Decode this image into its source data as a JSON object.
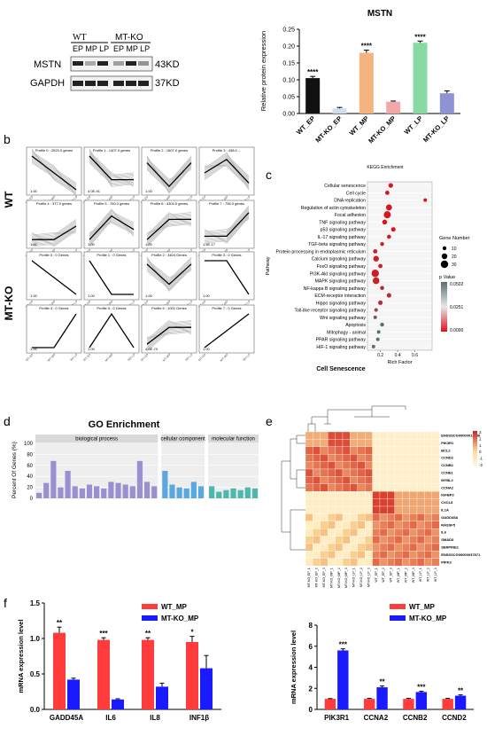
{
  "panel_letters": {
    "b": "b",
    "c": "c",
    "d": "d",
    "e": "e",
    "f": "f"
  },
  "western": {
    "groups": [
      "WT",
      "MT-KO"
    ],
    "lanes": [
      "EP MP LP",
      "EP MP LP"
    ],
    "proteins": [
      "MSTN",
      "GAPDH"
    ],
    "sizes": [
      "43KD",
      "37KD"
    ]
  },
  "chart_data": [
    {
      "id": "mstn_bar",
      "type": "bar",
      "title": "MSTN",
      "ylabel": "Relative protein expression",
      "ylim": [
        0,
        0.25
      ],
      "yticks": [
        "0.00",
        "0.05",
        "0.10",
        "0.15",
        "0.20",
        "0.25"
      ],
      "categories": [
        "WT_EP",
        "MT-KO_EP",
        "WT_MP",
        "MT-KO_MP",
        "WT_LP",
        "MT-KO_LP"
      ],
      "values": [
        0.105,
        0.015,
        0.18,
        0.035,
        0.21,
        0.06
      ],
      "errors": [
        0.005,
        0.003,
        0.008,
        0.002,
        0.005,
        0.007
      ],
      "significance": [
        "****",
        "",
        "****",
        "",
        "****",
        ""
      ],
      "colors": [
        "#111111",
        "#d4dde6",
        "#f5b380",
        "#f3a8a8",
        "#86dba2",
        "#8e93d6"
      ]
    },
    {
      "id": "stem_profiles",
      "type": "line",
      "rows": [
        {
          "label": "WT",
          "profiles": [
            {
              "title": "Profile 0 : 2523.0 genes",
              "path": [
                1,
                0.5,
                0
              ],
              "p": "1.00"
            },
            {
              "title": "Profile 1 : 1407.0 genes",
              "path": [
                1,
                0.3,
                0.3
              ],
              "p": "4.0E-91"
            },
            {
              "title": "Profile 2 : 1607.0 genes",
              "path": [
                0.8,
                0.1,
                0.8
              ],
              "p": "1.00"
            },
            {
              "title": "Profile 3 : 438.0 ...",
              "path": [
                0.5,
                0.9,
                0.2
              ],
              "p": ""
            },
            {
              "title": "Profile 4 : 377.0 genes",
              "path": [
                0.1,
                0.1,
                0.5
              ],
              "p": "1.00"
            },
            {
              "title": "Profile 5 : 760.0 genes",
              "path": [
                0.1,
                0.8,
                0.4
              ],
              "p": "1.00"
            },
            {
              "title": "Profile 6 : 4304.0 genes",
              "path": [
                0.1,
                0.7,
                0.7
              ],
              "p": "1.00"
            },
            {
              "title": "Profile 7 : 796.0 genes",
              "path": [
                0.2,
                0.2,
                0.9
              ],
              "p": "1.5E-17"
            }
          ]
        },
        {
          "label": "MT-KO",
          "profiles": [
            {
              "title": "Profile 0 : 0 Genes",
              "path": [
                1,
                0.5,
                0
              ],
              "p": "1.00"
            },
            {
              "title": "Profile 1 : 0 Genes",
              "path": [
                1,
                0,
                0
              ],
              "p": "1.00"
            },
            {
              "title": "Profile 2 : 3404 Genes",
              "path": [
                0.9,
                0.3,
                0.9
              ],
              "p": "1.00"
            },
            {
              "title": "Profile 3 : 0 Genes",
              "path": [
                1,
                1,
                0
              ],
              "p": "1.00"
            },
            {
              "title": "Profile 4 : 0 Genes",
              "path": [
                0,
                0,
                1
              ],
              "p": "1.00"
            },
            {
              "title": "Profile 5 : 0 Genes",
              "path": [
                0,
                1,
                0
              ],
              "p": "1.00"
            },
            {
              "title": "Profile 6 : 1001 Genes",
              "path": [
                0.1,
                0.6,
                0.6
              ],
              "p": "4.0E-70"
            },
            {
              "title": "Profile 7 : 0 Genes",
              "path": [
                0,
                0.5,
                1
              ],
              "p": "1.00"
            }
          ]
        }
      ],
      "xticks_wt": [
        "WT-EP",
        "WT-MP",
        "WT-LP"
      ],
      "xticks_ko": [
        "MT-EP",
        "MT-MP",
        "MT-LP"
      ]
    },
    {
      "id": "kegg_dot",
      "type": "scatter",
      "title": "KEGG Enrichment",
      "xlabel": "Rich Factor",
      "ylabel": "Pathway",
      "footer": "Cell Senescence",
      "xticks": [
        "0.2",
        "0.4",
        "0.6"
      ],
      "xlim": [
        0.05,
        0.8
      ],
      "pathways": [
        "Cellular senescence",
        "Cell cycle",
        "DNA replication",
        "Regulation of actin cytoskeleton",
        "Focal adhesion",
        "TNF signaling pathway",
        "p53 signaling pathway",
        "IL-17 signaling pathway",
        "TGF-beta signaling pathway",
        "Protein processing in endoplasmic reticulum",
        "Calcium signaling pathway",
        "FoxO signaling pathway",
        "PI3K-Akt signaling pathway",
        "MAPK signaling pathway",
        "NF-kappa B signaling pathway",
        "ECM-receptor interaction",
        "Hippo signaling pathway",
        "Toll-like receptor signaling pathway",
        "Wnt signaling pathway",
        "Apoptosis",
        "Mitophagy - animal",
        "PPAR signaling pathway",
        "HIF-1 signaling pathway"
      ],
      "rich": [
        0.32,
        0.28,
        0.72,
        0.3,
        0.28,
        0.25,
        0.35,
        0.3,
        0.22,
        0.14,
        0.15,
        0.2,
        0.14,
        0.15,
        0.22,
        0.3,
        0.2,
        0.15,
        0.14,
        0.22,
        0.18,
        0.17,
        0.12
      ],
      "gene_number": [
        14,
        12,
        8,
        22,
        28,
        16,
        14,
        11,
        10,
        12,
        20,
        12,
        30,
        26,
        11,
        14,
        14,
        9,
        8,
        10,
        8,
        8,
        8
      ],
      "pvalue": [
        0.0005,
        0.001,
        0.0005,
        0.001,
        0.001,
        0.001,
        0.002,
        0.003,
        0.004,
        0.008,
        0.006,
        0.006,
        0.007,
        0.008,
        0.01,
        0.012,
        0.015,
        0.03,
        0.04,
        0.05,
        0.07,
        0.08,
        0.09
      ],
      "size_legend_title": "Gene Number",
      "size_legend": [
        "10",
        "20",
        "30"
      ],
      "color_legend_title": "p Value",
      "color_legend": [
        "0.0502",
        "0.0251",
        "0.0000"
      ]
    },
    {
      "id": "go_bar",
      "type": "bar",
      "title": "GO Enrichment",
      "ylabel": "Percent Of Genes (%)",
      "ylim": [
        0,
        100
      ],
      "yticks": [
        "0",
        "20",
        "40",
        "60",
        "80",
        "100"
      ],
      "facets": [
        {
          "name": "biological process",
          "color": "#9a8fcf",
          "values": [
            10,
            28,
            68,
            20,
            50,
            22,
            18,
            25,
            22,
            18,
            30,
            28,
            25,
            22,
            68,
            30,
            22
          ]
        },
        {
          "name": "cellular component",
          "color": "#5aa8e0",
          "values": [
            50,
            25,
            20,
            18,
            30,
            22
          ]
        },
        {
          "name": "molecular function",
          "color": "#4fb8ad",
          "values": [
            22,
            12,
            15,
            18,
            15,
            20,
            18
          ]
        }
      ]
    },
    {
      "id": "heatmap",
      "type": "heatmap",
      "rows": [
        "ENSSSCG00000012288",
        "PIK3R1",
        "BCL2",
        "CCND2",
        "CCNB1",
        "CCNE1",
        "MYBL2",
        "CCNA2",
        "IGFBP3",
        "CXCL8",
        "IL1A",
        "GADD45A",
        "RASSF5",
        "IL6",
        "SMAD3",
        "SERPINE1",
        "ENSSSCG00000037871",
        "PIPK3"
      ],
      "cols": [
        "MT-KO_EP_1",
        "MT-KO_EP_2",
        "MT-KO_EP_3",
        "MT-KO_MP_1",
        "MT-KO_MP_2",
        "MT-KO_MP_3",
        "MT-KO_LP_1",
        "MT-KO_LP_2",
        "MT-KO_LP_3",
        "WT_EP_1",
        "WT_EP_2",
        "WT_EP_3",
        "WT_MP_1",
        "WT_MP_2",
        "WT_MP_3",
        "WT_LP_1",
        "WT_LP_2",
        "WT_LP_3"
      ],
      "scale": [
        "3",
        "2",
        "1",
        "0",
        "-1",
        "-2"
      ]
    },
    {
      "id": "mrna_left",
      "type": "bar",
      "ylabel": "mRNA expression level",
      "ylim": [
        0,
        1.5
      ],
      "yticks": [
        "0.0",
        "0.5",
        "1.0",
        "1.5"
      ],
      "categories": [
        "GADD45A",
        "IL6",
        "IL8",
        "INF1β"
      ],
      "series": [
        {
          "name": "WT_MP",
          "color": "#ff3b3b",
          "values": [
            1.08,
            0.98,
            0.98,
            0.95
          ],
          "errors": [
            0.08,
            0.03,
            0.03,
            0.08
          ]
        },
        {
          "name": "MT-KO_MP",
          "color": "#1a1aff",
          "values": [
            0.42,
            0.14,
            0.32,
            0.58
          ],
          "errors": [
            0.02,
            0.01,
            0.05,
            0.18
          ]
        }
      ],
      "significance": [
        "**",
        "***",
        "**",
        "*"
      ]
    },
    {
      "id": "mrna_right",
      "type": "bar",
      "ylabel": "mRNA expression level",
      "ylim": [
        0,
        8
      ],
      "yticks": [
        "0",
        "2",
        "4",
        "6",
        "8"
      ],
      "categories": [
        "PIK3R1",
        "CCNA2",
        "CCNB2",
        "CCND2"
      ],
      "series": [
        {
          "name": "WT_MP",
          "color": "#ff3b3b",
          "values": [
            1,
            1,
            1,
            1
          ],
          "errors": [
            0.03,
            0.05,
            0.05,
            0.05
          ]
        },
        {
          "name": "MT-KO_MP",
          "color": "#1a1aff",
          "values": [
            5.6,
            2.1,
            1.65,
            1.3
          ],
          "errors": [
            0.15,
            0.12,
            0.07,
            0.08
          ]
        }
      ],
      "significance": [
        "***",
        "**",
        "***",
        "**"
      ]
    }
  ]
}
